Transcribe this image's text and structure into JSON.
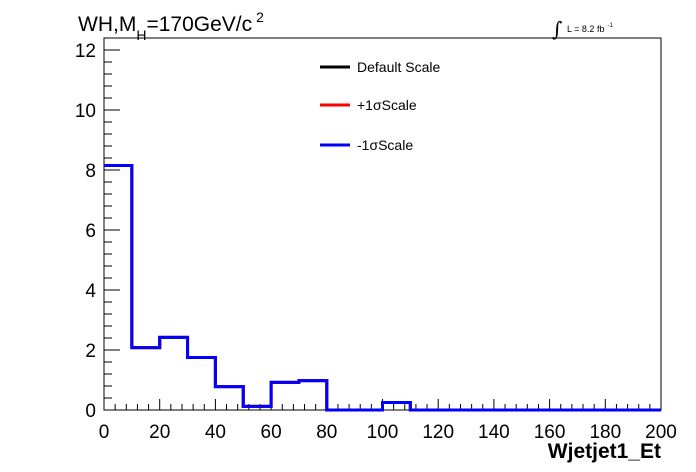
{
  "chart_data": {
    "type": "line",
    "title": {
      "part1": "WH,M",
      "subscript": "H",
      "part2": "=170GeV/c",
      "superscript": "2"
    },
    "luminosity": {
      "integral": "∫",
      "text": "L = 8.2 fb",
      "superscript": "-1"
    },
    "xlabel": "Wjetjet1_Et",
    "ylabel": "",
    "xlim": [
      0,
      200
    ],
    "ylim": [
      0,
      12.4
    ],
    "x_ticks": [
      0,
      20,
      40,
      60,
      80,
      100,
      120,
      140,
      160,
      180,
      200
    ],
    "x_tick_labels": [
      "0",
      "20",
      "40",
      "60",
      "80",
      "100",
      "120",
      "140",
      "160",
      "180",
      "200"
    ],
    "y_ticks": [
      0,
      2,
      4,
      6,
      8,
      10,
      12
    ],
    "y_tick_labels": [
      "0",
      "2",
      "4",
      "6",
      "8",
      "10",
      "12"
    ],
    "bin_edges": [
      0,
      10,
      20,
      30,
      40,
      50,
      60,
      70,
      80,
      90,
      100,
      110,
      120,
      130,
      140,
      150,
      160,
      170,
      180,
      190,
      200
    ],
    "series": [
      {
        "name": "Default Scale",
        "color": "#000000",
        "values": [
          8.15,
          2.08,
          2.42,
          1.75,
          0.78,
          0.12,
          0.92,
          0.98,
          0.0,
          0.0,
          0.25,
          0.0,
          0.0,
          0.0,
          0.0,
          0.0,
          0.0,
          0.0,
          0.0,
          0.0
        ]
      },
      {
        "name": "+1σScale",
        "color": "#ff0000",
        "values": [
          8.15,
          2.08,
          2.42,
          1.75,
          0.78,
          0.12,
          0.92,
          0.98,
          0.0,
          0.0,
          0.25,
          0.0,
          0.0,
          0.0,
          0.0,
          0.0,
          0.0,
          0.0,
          0.0,
          0.0
        ]
      },
      {
        "name": "-1σScale",
        "color": "#0000ff",
        "values": [
          8.15,
          2.08,
          2.42,
          1.75,
          0.78,
          0.12,
          0.92,
          0.98,
          0.0,
          0.0,
          0.25,
          0.0,
          0.0,
          0.0,
          0.0,
          0.0,
          0.0,
          0.0,
          0.0,
          0.0
        ]
      }
    ],
    "legend": {
      "placement": "top-center",
      "entries": [
        "Default Scale",
        "+1σScale",
        "-1σScale"
      ]
    },
    "grid": false
  }
}
